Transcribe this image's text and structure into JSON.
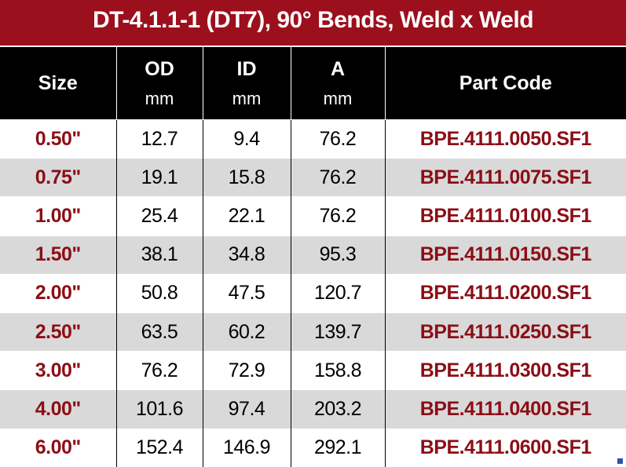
{
  "header": {
    "title": "DT-4.1.1-1 (DT7), 90° Bends, Weld x Weld"
  },
  "table": {
    "columns": [
      {
        "name": "Size"
      },
      {
        "name": "OD",
        "unit": "mm"
      },
      {
        "name": "ID",
        "unit": "mm"
      },
      {
        "name": "A",
        "unit": "mm"
      },
      {
        "name": "Part Code"
      }
    ],
    "rows": [
      [
        "0.50\"",
        "12.7",
        "9.4",
        "76.2",
        "BPE.4111.0050.SF1"
      ],
      [
        "0.75\"",
        "19.1",
        "15.8",
        "76.2",
        "BPE.4111.0075.SF1"
      ],
      [
        "1.00\"",
        "25.4",
        "22.1",
        "76.2",
        "BPE.4111.0100.SF1"
      ],
      [
        "1.50\"",
        "38.1",
        "34.8",
        "95.3",
        "BPE.4111.0150.SF1"
      ],
      [
        "2.00\"",
        "50.8",
        "47.5",
        "120.7",
        "BPE.4111.0200.SF1"
      ],
      [
        "2.50\"",
        "63.5",
        "60.2",
        "139.7",
        "BPE.4111.0250.SF1"
      ],
      [
        "3.00\"",
        "76.2",
        "72.9",
        "158.8",
        "BPE.4111.0300.SF1"
      ],
      [
        "4.00\"",
        "101.6",
        "97.4",
        "203.2",
        "BPE.4111.0400.SF1"
      ],
      [
        "6.00\"",
        "152.4",
        "146.9",
        "292.1",
        "BPE.4111.0600.SF1"
      ]
    ]
  }
}
